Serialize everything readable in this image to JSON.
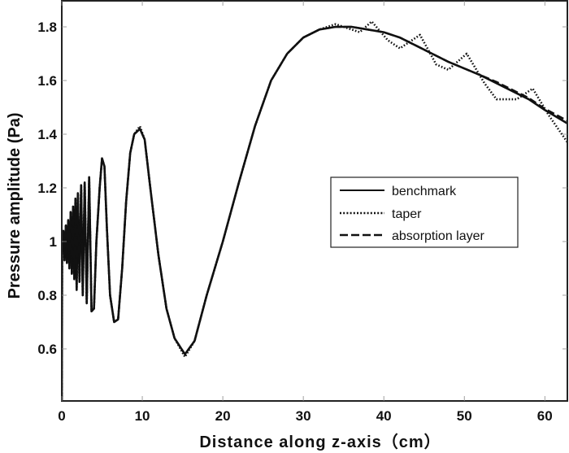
{
  "chart_data": {
    "type": "line",
    "title": "",
    "xlabel": "Distance along z-axis（cm）",
    "ylabel": "Pressure amplitude (Pa)",
    "xlim": [
      0,
      62.8
    ],
    "ylim": [
      0.406,
      1.897
    ],
    "xticks": [
      0,
      10,
      20,
      30,
      40,
      50,
      60
    ],
    "xtick_labels": [
      "0",
      "10",
      "20",
      "30",
      "40",
      "50",
      "60"
    ],
    "yticks": [
      0.6,
      0.8,
      1.0,
      1.2,
      1.4,
      1.6,
      1.8
    ],
    "ytick_labels": [
      "0.6",
      "0.8",
      "1",
      "1.2",
      "1.4",
      "1.6",
      "1.8"
    ],
    "grid": false,
    "legend": {
      "position": "inside-right",
      "entries": [
        "benchmark",
        "taper",
        "absorption layer"
      ]
    },
    "series": [
      {
        "name": "benchmark",
        "style": "solid",
        "x": [
          0,
          0.05,
          0.2,
          0.35,
          0.5,
          0.65,
          0.8,
          0.95,
          1.1,
          1.25,
          1.4,
          1.55,
          1.7,
          1.85,
          2.0,
          2.2,
          2.4,
          2.6,
          2.85,
          3.1,
          3.4,
          3.7,
          4.0,
          4.3,
          4.7,
          5.0,
          5.3,
          5.6,
          6.0,
          6.5,
          7.0,
          7.5,
          8.0,
          8.5,
          9.0,
          9.7,
          10.3,
          11.0,
          12.0,
          13.0,
          14.0,
          15.3,
          16.5,
          18.0,
          20.0,
          22.0,
          24.0,
          26.0,
          28.0,
          30.0,
          32.0,
          34.0,
          36.0,
          38.0,
          40.0,
          42.0,
          44.0,
          46.0,
          48.0,
          50.0,
          52.0,
          54.0,
          56.0,
          58.0,
          60.0,
          62.8
        ],
        "values": [
          0.41,
          1.0,
          1.04,
          0.93,
          1.06,
          0.92,
          1.08,
          0.9,
          1.11,
          0.88,
          1.13,
          0.86,
          1.16,
          0.82,
          1.18,
          0.85,
          1.21,
          0.8,
          1.22,
          0.77,
          1.24,
          0.74,
          0.75,
          1.0,
          1.2,
          1.31,
          1.28,
          1.05,
          0.8,
          0.7,
          0.71,
          0.9,
          1.15,
          1.33,
          1.4,
          1.42,
          1.38,
          1.2,
          0.95,
          0.75,
          0.64,
          0.58,
          0.63,
          0.8,
          1.0,
          1.22,
          1.43,
          1.6,
          1.7,
          1.76,
          1.79,
          1.8,
          1.8,
          1.79,
          1.78,
          1.76,
          1.73,
          1.7,
          1.67,
          1.645,
          1.62,
          1.59,
          1.56,
          1.53,
          1.49,
          1.44
        ]
      },
      {
        "name": "taper",
        "style": "dotted",
        "x": [
          0,
          0.05,
          0.2,
          0.35,
          0.5,
          0.65,
          0.8,
          0.95,
          1.1,
          1.25,
          1.4,
          1.55,
          1.7,
          1.85,
          2.0,
          2.2,
          2.4,
          2.6,
          2.85,
          3.1,
          3.4,
          3.7,
          4.0,
          4.3,
          4.7,
          5.0,
          5.3,
          5.6,
          6.0,
          6.5,
          7.0,
          7.5,
          8.0,
          8.5,
          9.0,
          9.7,
          10.3,
          11.0,
          12.0,
          13.0,
          14.0,
          15.3,
          16.5,
          18.0,
          20.0,
          22.0,
          24.0,
          26.0,
          28.0,
          30.0,
          32.0,
          34.0,
          36.0,
          37.0,
          38.5,
          40.5,
          42.0,
          44.5,
          46.5,
          48.0,
          50.3,
          52.5,
          54.0,
          56.5,
          58.5,
          60.5,
          62.8
        ],
        "values": [
          0.41,
          1.0,
          1.04,
          0.93,
          1.06,
          0.92,
          1.08,
          0.9,
          1.11,
          0.88,
          1.13,
          0.86,
          1.16,
          0.82,
          1.18,
          0.85,
          1.21,
          0.8,
          1.22,
          0.77,
          1.24,
          0.74,
          0.75,
          1.0,
          1.2,
          1.31,
          1.28,
          1.05,
          0.8,
          0.7,
          0.71,
          0.9,
          1.15,
          1.33,
          1.4,
          1.43,
          1.38,
          1.2,
          0.95,
          0.75,
          0.64,
          0.57,
          0.63,
          0.8,
          1.0,
          1.22,
          1.43,
          1.6,
          1.7,
          1.76,
          1.79,
          1.81,
          1.79,
          1.78,
          1.82,
          1.75,
          1.72,
          1.77,
          1.66,
          1.64,
          1.7,
          1.59,
          1.53,
          1.53,
          1.57,
          1.47,
          1.37
        ]
      },
      {
        "name": "absorption layer",
        "style": "dashed",
        "x": [
          0,
          0.05,
          0.2,
          0.35,
          0.5,
          0.65,
          0.8,
          0.95,
          1.1,
          1.25,
          1.4,
          1.55,
          1.7,
          1.85,
          2.0,
          2.2,
          2.4,
          2.6,
          2.85,
          3.1,
          3.4,
          3.7,
          4.0,
          4.3,
          4.7,
          5.0,
          5.3,
          5.6,
          6.0,
          6.5,
          7.0,
          7.5,
          8.0,
          8.5,
          9.0,
          9.7,
          10.3,
          11.0,
          12.0,
          13.0,
          14.0,
          15.3,
          16.5,
          18.0,
          20.0,
          22.0,
          24.0,
          26.0,
          28.0,
          30.0,
          32.0,
          34.0,
          36.0,
          38.0,
          40.0,
          42.0,
          44.0,
          46.0,
          48.0,
          50.0,
          52.0,
          54.0,
          56.0,
          58.0,
          60.0,
          62.8
        ],
        "values": [
          0.41,
          1.0,
          1.04,
          0.93,
          1.06,
          0.92,
          1.08,
          0.9,
          1.11,
          0.88,
          1.13,
          0.86,
          1.16,
          0.82,
          1.18,
          0.85,
          1.21,
          0.8,
          1.22,
          0.77,
          1.24,
          0.74,
          0.75,
          1.0,
          1.2,
          1.31,
          1.28,
          1.05,
          0.8,
          0.7,
          0.71,
          0.9,
          1.15,
          1.33,
          1.4,
          1.42,
          1.38,
          1.2,
          0.95,
          0.75,
          0.64,
          0.58,
          0.63,
          0.8,
          1.0,
          1.22,
          1.43,
          1.6,
          1.7,
          1.76,
          1.79,
          1.8,
          1.8,
          1.79,
          1.78,
          1.76,
          1.73,
          1.7,
          1.67,
          1.645,
          1.62,
          1.595,
          1.565,
          1.535,
          1.495,
          1.45
        ]
      }
    ]
  },
  "colors": {
    "line": "#111111",
    "axis": "#222222",
    "background": "#ffffff"
  }
}
